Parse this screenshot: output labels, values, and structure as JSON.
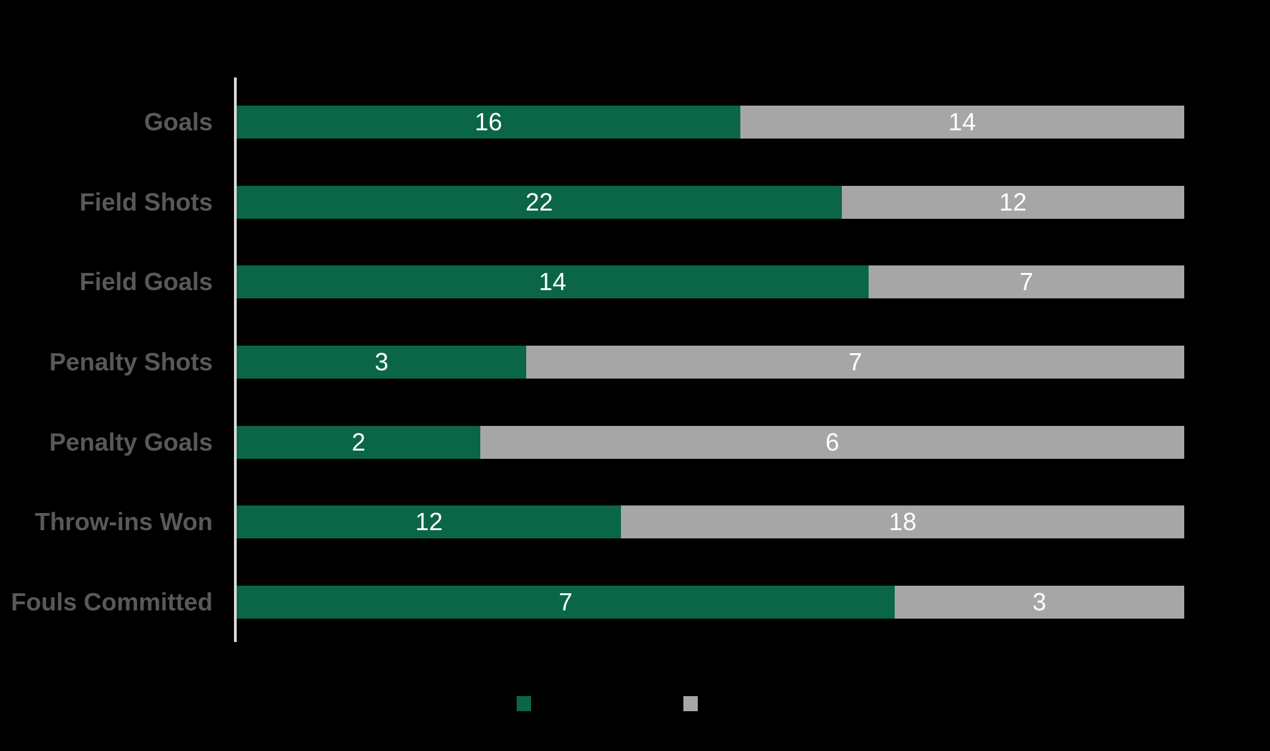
{
  "background_color": "#000000",
  "colors": {
    "series_green": "#0a6646",
    "series_gray": "#a6a6a6",
    "category_label": "#595959",
    "value_label": "#ffffff",
    "axis_line": "#d9d9d9"
  },
  "chart_data": {
    "type": "bar",
    "orientation": "horizontal",
    "stacking": "100-percent",
    "title": "",
    "xlabel": "",
    "ylabel": "",
    "grid": false,
    "categories": [
      "Goals",
      "Field Shots",
      "Field Goals",
      "Penalty Shots",
      "Penalty Goals",
      "Throw-ins Won",
      "Fouls Committed"
    ],
    "series": [
      {
        "name": "green-series",
        "color": "#0a6646",
        "values": [
          16,
          22,
          14,
          3,
          2,
          12,
          7
        ]
      },
      {
        "name": "gray-series",
        "color": "#a6a6a6",
        "values": [
          14,
          12,
          7,
          7,
          6,
          18,
          3
        ]
      }
    ],
    "data_labels": "shown-centered-white",
    "legend": {
      "position": "bottom",
      "entries": [
        {
          "swatch_color": "#0a6646",
          "label": ""
        },
        {
          "swatch_color": "#a6a6a6",
          "label": ""
        }
      ]
    }
  }
}
